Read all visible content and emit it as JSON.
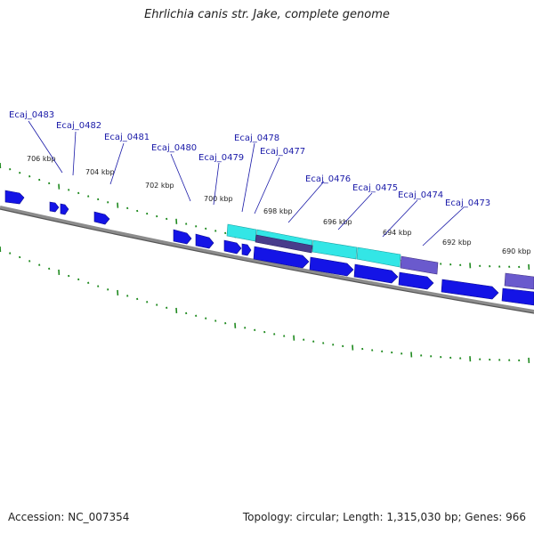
{
  "title": "Ehrlichia canis str. Jake, complete genome",
  "footer": {
    "accession": "Accession: NC_007354",
    "summary": "Topology: circular; Length: 1,315,030 bp; Genes: 966"
  },
  "colors": {
    "background": "#ffffff",
    "backbone": "#777777",
    "tick": "#1f8a1f",
    "gene_forward": "#1414e6",
    "gene_highlight": "#33e6e6",
    "gene_purple": "#6a5acd",
    "label": "#1a1aa8"
  },
  "ruler_labels": [
    "706 kbp",
    "704 kbp",
    "702 kbp",
    "700 kbp",
    "698 kbp",
    "696 kbp",
    "694 kbp",
    "692 kbp",
    "690 kbp"
  ],
  "gene_labels": [
    "Ecaj_0483",
    "Ecaj_0482",
    "Ecaj_0481",
    "Ecaj_0480",
    "Ecaj_0479",
    "Ecaj_0478",
    "Ecaj_0477",
    "Ecaj_0476",
    "Ecaj_0475",
    "Ecaj_0474",
    "Ecaj_0473"
  ]
}
